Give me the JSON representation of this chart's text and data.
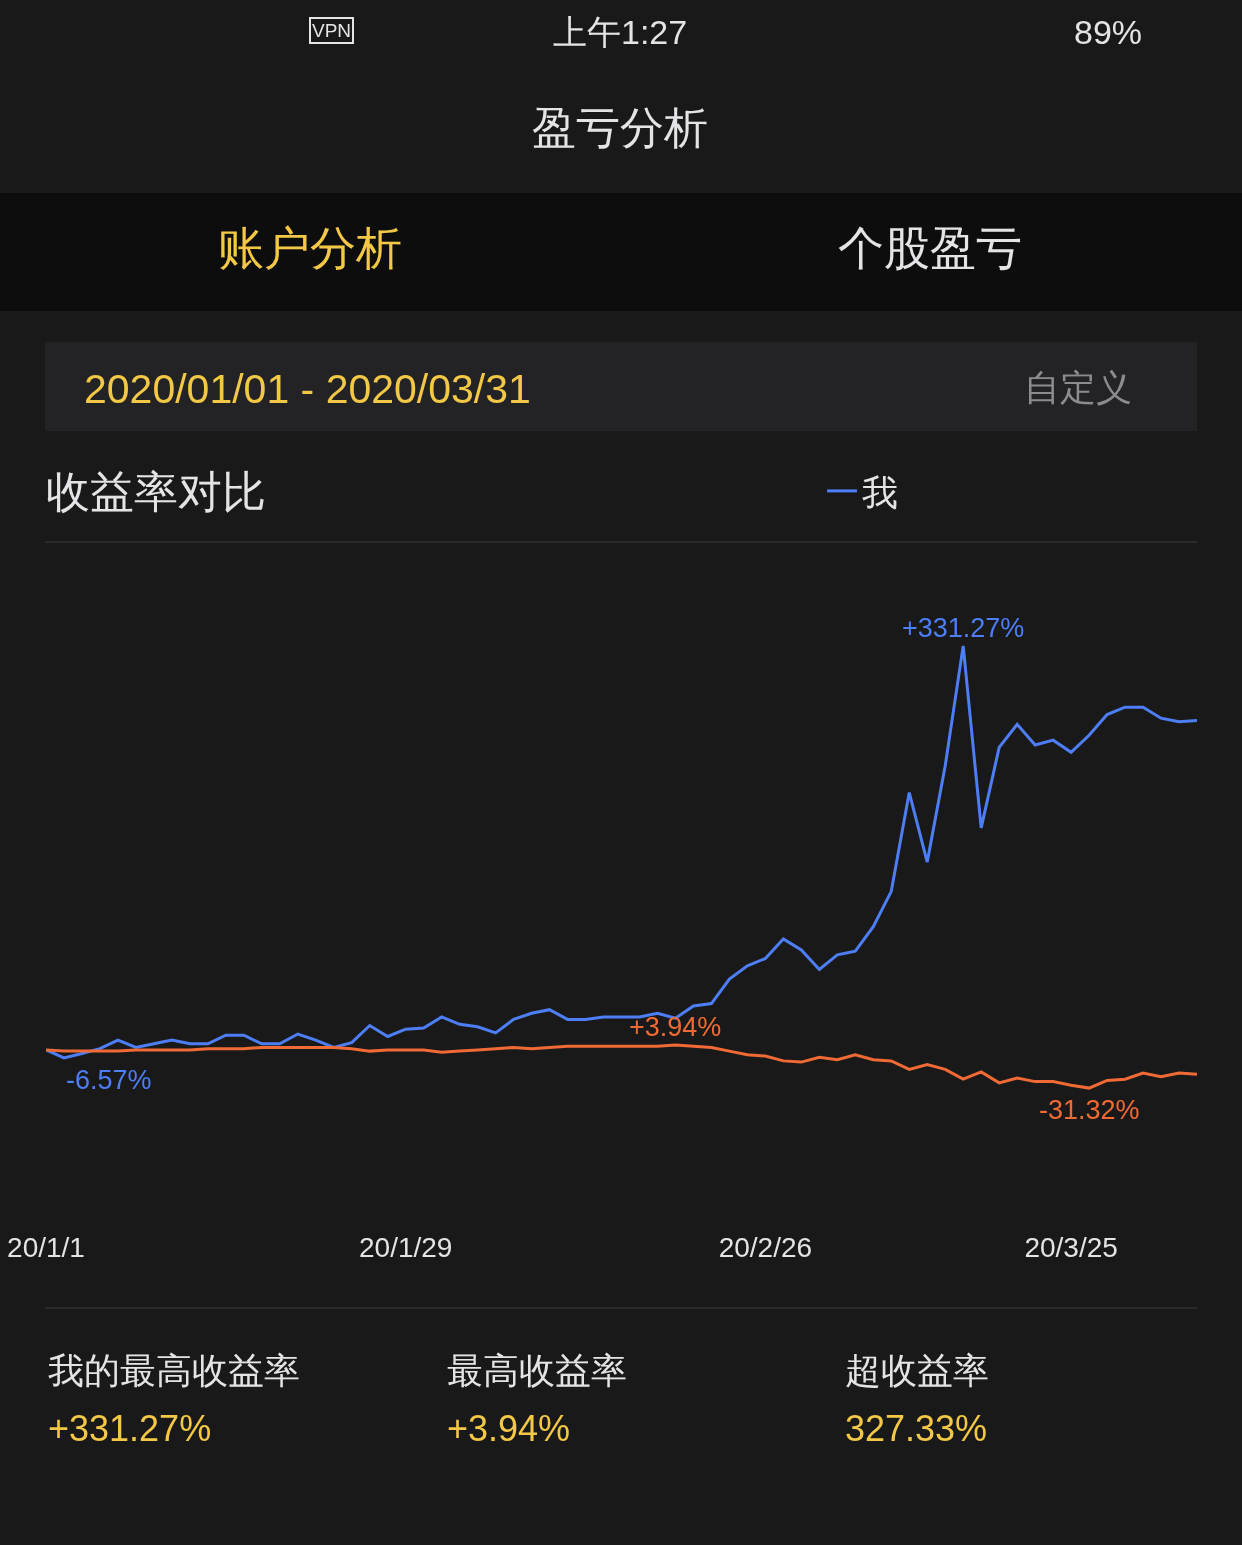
{
  "chart_data": {
    "type": "line",
    "title": "收益率对比",
    "categories": [
      "20/1/1",
      null,
      null,
      null,
      null,
      null,
      null,
      null,
      null,
      null,
      null,
      null,
      null,
      null,
      null,
      null,
      null,
      null,
      null,
      null,
      "20/1/29",
      null,
      null,
      null,
      null,
      null,
      null,
      null,
      null,
      null,
      null,
      null,
      null,
      null,
      null,
      null,
      null,
      null,
      null,
      null,
      "20/2/26",
      null,
      null,
      null,
      null,
      null,
      null,
      null,
      null,
      null,
      null,
      null,
      null,
      null,
      null,
      null,
      null,
      "20/3/25",
      null,
      null,
      null,
      null,
      null,
      null,
      null
    ],
    "series": [
      {
        "name": "我",
        "color": "#4d7ef6",
        "values": [
          0,
          -6.57,
          -3,
          1,
          8,
          2,
          5,
          8,
          5,
          5,
          12,
          12,
          5,
          5,
          13,
          8,
          2,
          6,
          20,
          11,
          17,
          18,
          27,
          21,
          19,
          14,
          25,
          30,
          33,
          25,
          25,
          27,
          27,
          27,
          30,
          26,
          36,
          38,
          58,
          69,
          75,
          91,
          82,
          66,
          78,
          81,
          101,
          130,
          211,
          154,
          233,
          331.27,
          182,
          248,
          267,
          250,
          254,
          244,
          258,
          275,
          281,
          281,
          272,
          269,
          270
        ],
        "value_labels": [
          null,
          "-6.57%",
          null,
          null,
          null,
          null,
          null,
          null,
          null,
          null,
          null,
          null,
          null,
          null,
          null,
          null,
          null,
          null,
          null,
          null,
          null,
          null,
          null,
          null,
          null,
          null,
          null,
          null,
          null,
          null,
          null,
          null,
          null,
          null,
          null,
          null,
          null,
          null,
          null,
          null,
          null,
          null,
          null,
          null,
          null,
          null,
          null,
          null,
          null,
          null,
          null,
          "+331.27%",
          null,
          null,
          null,
          null,
          null,
          null,
          null,
          null,
          null,
          null,
          null,
          null,
          null
        ]
      },
      {
        "color": "#f06a35",
        "values": [
          0,
          -1,
          -1,
          -1,
          -1,
          0,
          0,
          0,
          0,
          1,
          1,
          1,
          2,
          2,
          2,
          2,
          2,
          1,
          -1,
          0,
          0,
          0,
          -2,
          -1,
          0,
          1,
          2,
          1,
          2,
          3,
          3,
          3,
          3,
          3,
          3,
          3.94,
          3,
          2,
          -1,
          -4,
          -5,
          -9,
          -10,
          -6,
          -8,
          -4,
          -8,
          -9,
          -16,
          -12,
          -16,
          -24,
          -18,
          -27,
          -23,
          -26,
          -26,
          -29,
          -31.32,
          -25,
          -24,
          -19,
          -22,
          -19,
          -20
        ],
        "value_labels": [
          null,
          null,
          null,
          null,
          null,
          null,
          null,
          null,
          null,
          null,
          null,
          null,
          null,
          null,
          null,
          null,
          null,
          null,
          null,
          null,
          null,
          null,
          null,
          null,
          null,
          null,
          null,
          null,
          null,
          null,
          null,
          null,
          null,
          null,
          null,
          "+3.94%",
          null,
          null,
          null,
          null,
          null,
          null,
          null,
          null,
          null,
          null,
          null,
          null,
          null,
          null,
          null,
          null,
          null,
          null,
          null,
          null,
          null,
          null,
          "-31.32%",
          null,
          null,
          null,
          null,
          null,
          null
        ]
      }
    ],
    "tick_labels": "x",
    "grid": false,
    "legend": "top right",
    "annotations": [
      "上午1:27",
      "VPN",
      "89%",
      "盈亏分析",
      "账户分析",
      "个股盈亏",
      "2020/01/01 - 2020/03/31",
      "自定义",
      "我的最高收益率",
      "+331.27%",
      "最高收益率",
      "+3.94%",
      "超收益率",
      "327.33%"
    ]
  }
}
